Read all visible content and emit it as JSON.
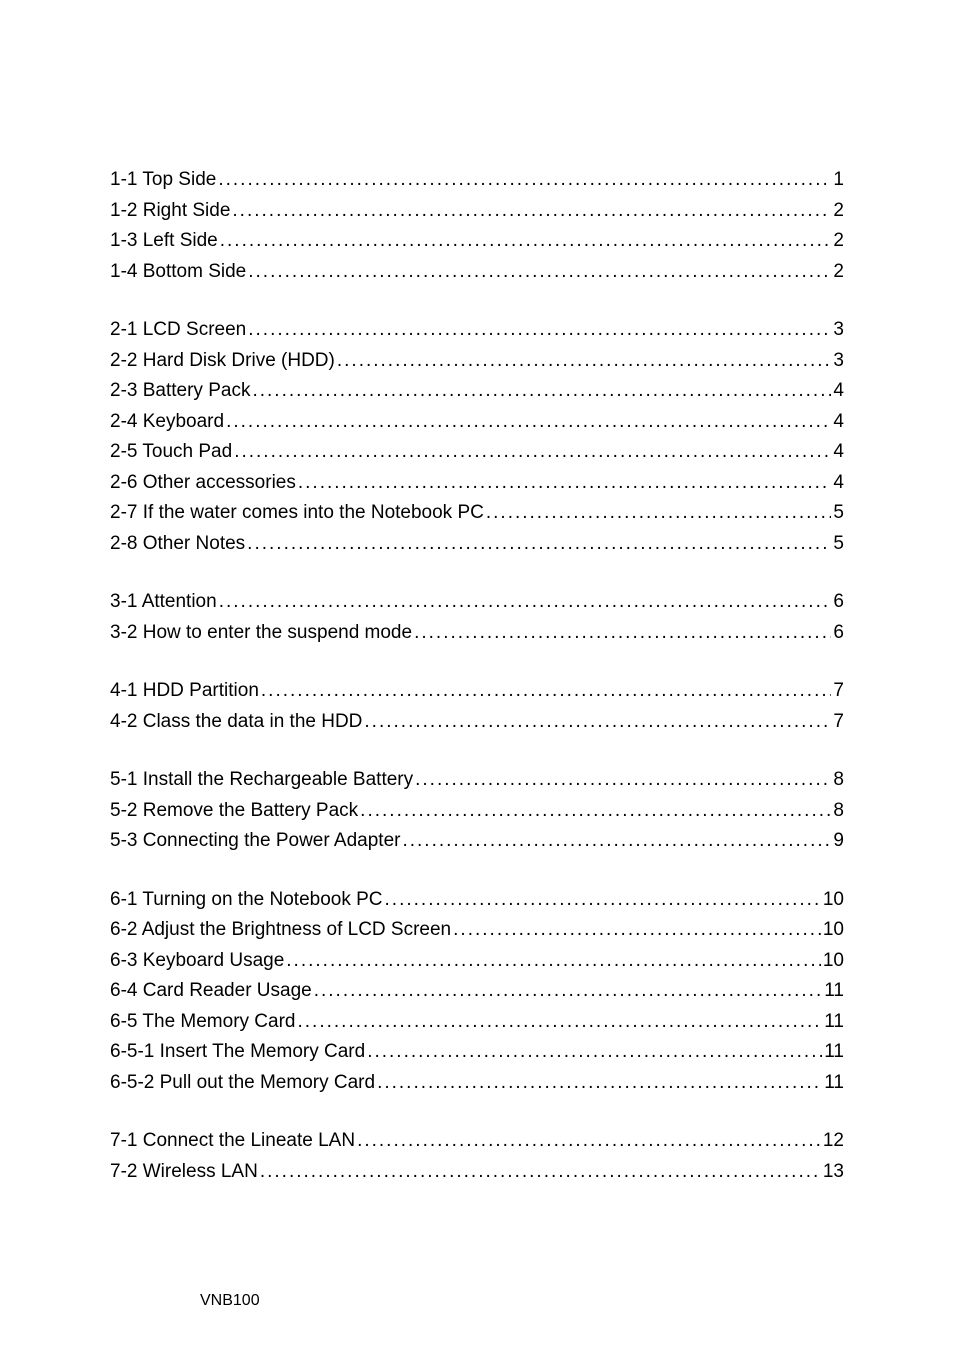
{
  "text_color": "#000000",
  "background_color": "#ffffff",
  "font_family": "Arial, Helvetica, sans-serif",
  "entry_fontsize": 19,
  "footer_fontsize": 16,
  "footer": "VNB100",
  "sections": [
    {
      "entries": [
        {
          "label": "1-1 Top Side",
          "page": "1"
        },
        {
          "label": "1-2 Right Side",
          "page": "2"
        },
        {
          "label": "1-3 Left Side",
          "page": "2"
        },
        {
          "label": "1-4 Bottom Side",
          "page": "2"
        }
      ]
    },
    {
      "entries": [
        {
          "label": "2-1 LCD Screen",
          "page": "3"
        },
        {
          "label": "2-2 Hard Disk Drive (HDD)",
          "page": "3"
        },
        {
          "label": "2-3 Battery Pack",
          "page": "4"
        },
        {
          "label": "2-4 Keyboard",
          "page": "4"
        },
        {
          "label": "2-5 Touch Pad",
          "page": "4"
        },
        {
          "label": "2-6 Other accessories",
          "page": "4"
        },
        {
          "label": "2-7 If the water comes into the Notebook PC",
          "page": "5"
        },
        {
          "label": "2-8 Other Notes",
          "page": "5"
        }
      ]
    },
    {
      "entries": [
        {
          "label": "3-1 Attention",
          "page": "6"
        },
        {
          "label": "3-2 How to enter the suspend mode",
          "page": "6"
        }
      ]
    },
    {
      "entries": [
        {
          "label": "4-1 HDD Partition",
          "page": "7"
        },
        {
          "label": "4-2 Class the data in the HDD",
          "page": "7"
        }
      ]
    },
    {
      "entries": [
        {
          "label": "5-1 Install the Rechargeable Battery",
          "page": "8"
        },
        {
          "label": "5-2 Remove the Battery Pack",
          "page": "8"
        },
        {
          "label": "5-3 Connecting the Power Adapter",
          "page": "9"
        }
      ]
    },
    {
      "entries": [
        {
          "label": "6-1 Turning on the Notebook PC",
          "page": "10"
        },
        {
          "label": "6-2 Adjust the Brightness of LCD Screen",
          "page": "10"
        },
        {
          "label": "6-3 Keyboard Usage",
          "page": "10"
        },
        {
          "label": "6-4 Card Reader Usage",
          "page": "11"
        },
        {
          "label": "6-5 The Memory Card",
          "page": "11"
        },
        {
          "label": "6-5-1 Insert The Memory Card",
          "page": "11"
        },
        {
          "label": "6-5-2 Pull out the Memory Card",
          "page": "11"
        }
      ]
    },
    {
      "entries": [
        {
          "label": "7-1 Connect the Lineate LAN",
          "page": "12"
        },
        {
          "label": "7-2 Wireless LAN",
          "page": "13"
        }
      ]
    }
  ]
}
